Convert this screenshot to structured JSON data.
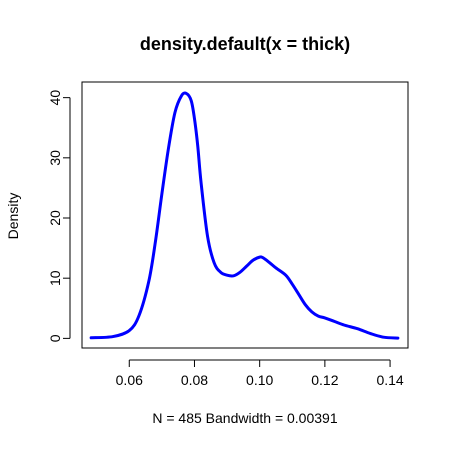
{
  "chart_data": {
    "type": "line",
    "title": "density.default(x = thick)",
    "xlabel": "N = 485   Bandwidth = 0.00391",
    "ylabel": "Density",
    "xlim": [
      0.0455,
      0.1455
    ],
    "ylim": [
      -1.6,
      42.6
    ],
    "grid": false,
    "legend": "none",
    "x_ticks": [
      0.06,
      0.08,
      0.1,
      0.12,
      0.14
    ],
    "x_tick_labels": [
      "0.06",
      "0.08",
      "0.10",
      "0.12",
      "0.14"
    ],
    "y_ticks": [
      0,
      10,
      20,
      30,
      40
    ],
    "y_tick_labels": [
      "0",
      "10",
      "20",
      "30",
      "40"
    ],
    "line_color": "#0000ff",
    "series": [
      {
        "x": [
          0.0483,
          0.055,
          0.06,
          0.063,
          0.066,
          0.068,
          0.07,
          0.072,
          0.074,
          0.076,
          0.0775,
          0.079,
          0.08,
          0.081,
          0.082,
          0.084,
          0.086,
          0.088,
          0.09,
          0.092,
          0.094,
          0.096,
          0.098,
          0.1,
          0.101,
          0.103,
          0.105,
          0.108,
          0.11,
          0.112,
          0.114,
          0.116,
          0.118,
          0.12,
          0.123,
          0.126,
          0.13,
          0.134,
          0.138,
          0.1424
        ],
        "y": [
          0.1,
          0.3,
          1.3,
          3.8,
          9.5,
          16.0,
          24.0,
          31.5,
          37.5,
          40.3,
          40.7,
          39.5,
          36.5,
          32.0,
          26.0,
          17.0,
          12.6,
          11.0,
          10.5,
          10.4,
          11.0,
          12.0,
          13.0,
          13.5,
          13.4,
          12.6,
          11.7,
          10.5,
          9.0,
          7.3,
          5.6,
          4.4,
          3.7,
          3.4,
          2.8,
          2.2,
          1.6,
          0.8,
          0.2,
          0.05
        ]
      }
    ]
  }
}
